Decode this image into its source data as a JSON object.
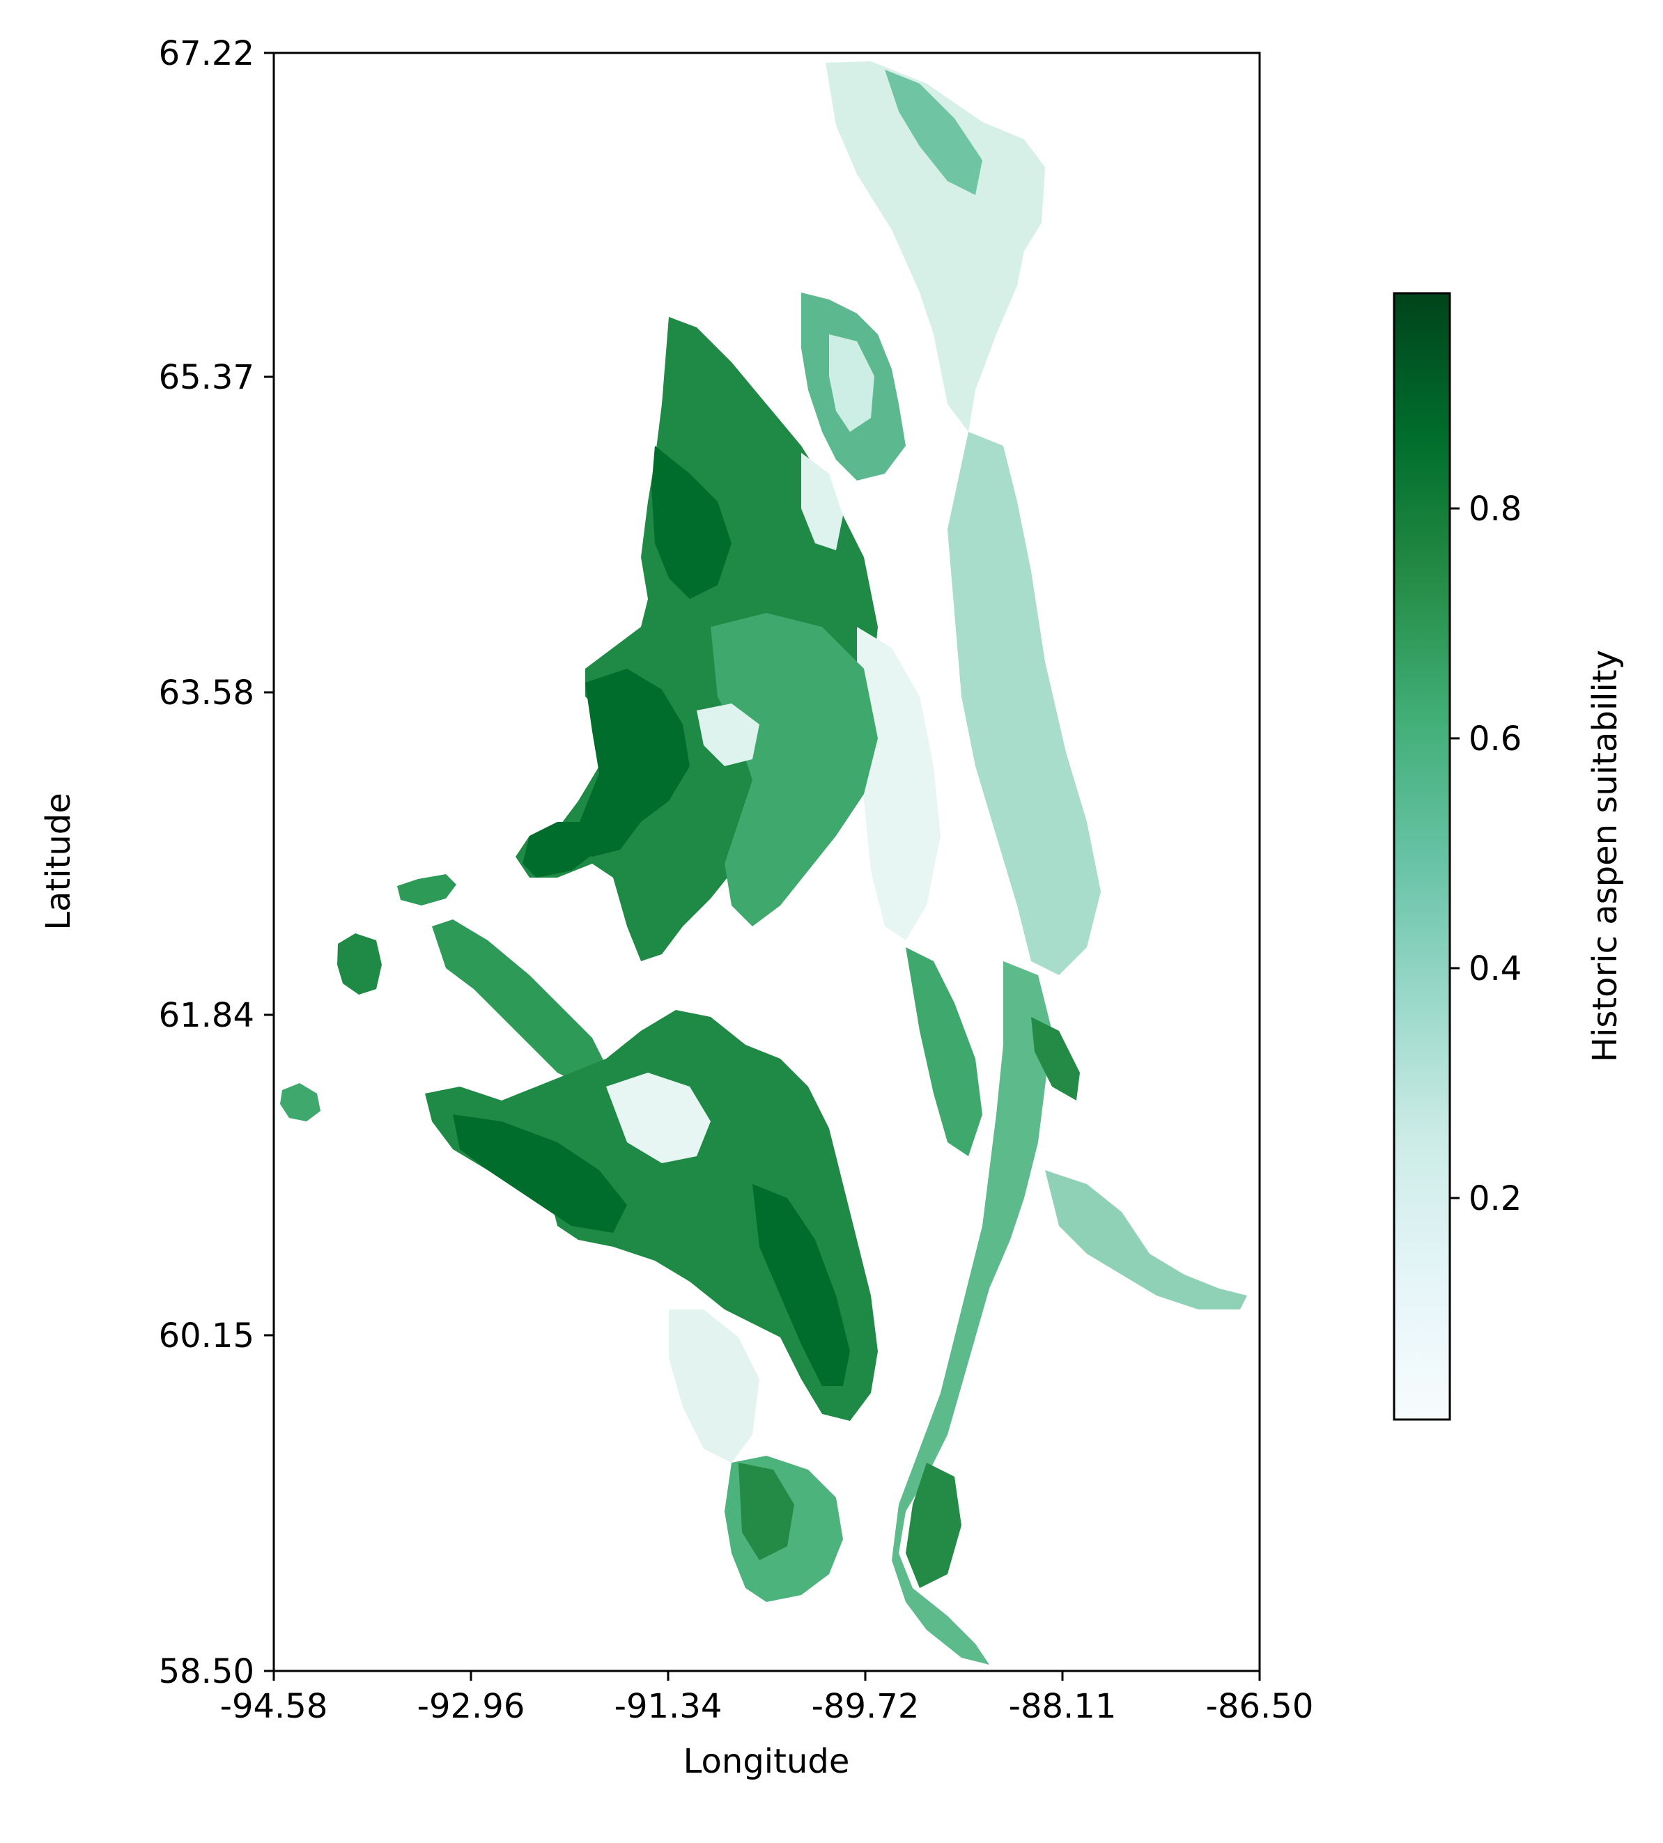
{
  "map": {
    "xlabel": "Longitude",
    "ylabel": "Latitude",
    "x_ticks": [
      "-94.58",
      "-92.96",
      "-91.34",
      "-89.72",
      "-88.11",
      "-86.50"
    ],
    "y_ticks": [
      "67.22",
      "65.37",
      "63.58",
      "61.84",
      "60.15",
      "58.50"
    ],
    "xlim": [
      -94.58,
      -86.5
    ],
    "ylim": [
      58.5,
      67.22
    ]
  },
  "colorbar": {
    "label": "Historic aspen suitability",
    "ticks": [
      "0.2",
      "0.4",
      "0.6",
      "0.8"
    ],
    "range": [
      0.0,
      0.98
    ],
    "colors": [
      "#f7fcfd",
      "#e5f5f9",
      "#ccece6",
      "#99d8c9",
      "#66c2a4",
      "#41ae76",
      "#238b45",
      "#006d2c",
      "#00441b"
    ]
  }
}
